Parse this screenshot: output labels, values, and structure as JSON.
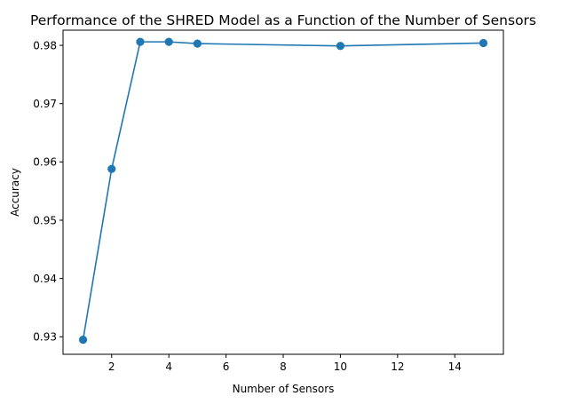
{
  "chart_data": {
    "type": "line",
    "title": "Performance of the SHRED Model as a Function of the Number of Sensors",
    "xlabel": "Number of Sensors",
    "ylabel": "Accuracy",
    "x": [
      1,
      2,
      3,
      4,
      5,
      10,
      15
    ],
    "series": [
      {
        "values": [
          0.9295,
          0.9588,
          0.9806,
          0.9806,
          0.9803,
          0.9799,
          0.9804
        ],
        "color": "#1f77b4"
      }
    ],
    "xlim": [
      0.3,
      15.7
    ],
    "ylim": [
      0.927,
      0.9826
    ],
    "xticks": [
      2,
      4,
      6,
      8,
      10,
      12,
      14
    ],
    "yticks": [
      0.93,
      0.94,
      0.95,
      0.96,
      0.97,
      0.98
    ],
    "xtick_labels": [
      "2",
      "4",
      "6",
      "8",
      "10",
      "12",
      "14"
    ],
    "ytick_labels": [
      "0.93",
      "0.94",
      "0.95",
      "0.96",
      "0.97",
      "0.98"
    ],
    "grid": false,
    "marker": "circle"
  }
}
